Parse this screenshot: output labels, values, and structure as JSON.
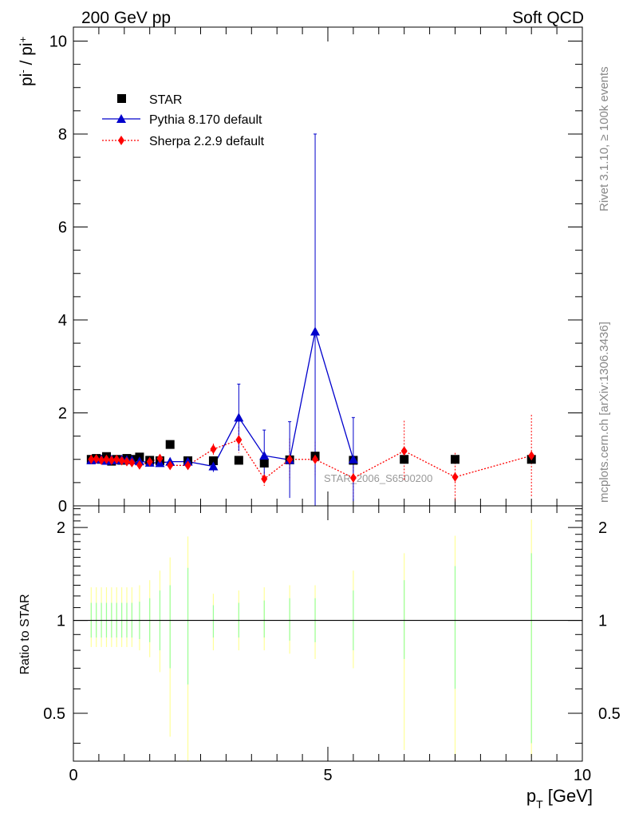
{
  "header": {
    "left": "200 GeV pp",
    "right": "Soft QCD"
  },
  "side_labels": {
    "rivet": "Rivet 3.1.10, ≥ 100k events",
    "mcplots": "mcplots.cern.ch [arXiv:1306.3436]"
  },
  "watermark": "STAR_2006_S6500200",
  "colors": {
    "star": "#000000",
    "pythia": "#0000cc",
    "sherpa": "#ff0000",
    "band_yellow": "#ffff99",
    "band_green": "#99ff99"
  },
  "chart_data": [
    {
      "type": "scatter",
      "panel": "main",
      "ylabel_base": "pi",
      "ylabel_num_sup": "-",
      "ylabel_den_sup": "+",
      "ylim": [
        0,
        10.3
      ],
      "xlim": [
        0,
        10
      ],
      "yticks": [
        "0",
        "2",
        "4",
        "6",
        "8",
        "10"
      ],
      "legend": [
        "STAR",
        "Pythia 8.170 default",
        "Sherpa 2.2.9 default"
      ],
      "legend_position": "top-left",
      "series": [
        {
          "name": "STAR",
          "marker": "square",
          "x": [
            0.35,
            0.45,
            0.55,
            0.65,
            0.75,
            0.85,
            0.95,
            1.05,
            1.15,
            1.3,
            1.5,
            1.7,
            1.9,
            2.25,
            2.75,
            3.25,
            3.75,
            4.25,
            4.75,
            5.5,
            6.5,
            7.5,
            9.0
          ],
          "y": [
            1.0,
            1.02,
            1.0,
            1.06,
            0.96,
            1.0,
            0.98,
            1.02,
            1.0,
            1.05,
            0.98,
            0.97,
            1.32,
            0.97,
            0.97,
            0.98,
            0.92,
            0.99,
            1.07,
            0.98,
            1.0,
            1.0,
            1.0
          ]
        },
        {
          "name": "Pythia 8.170 default",
          "marker": "triangle",
          "x": [
            0.35,
            0.45,
            0.55,
            0.65,
            0.75,
            0.85,
            0.95,
            1.05,
            1.15,
            1.3,
            1.5,
            1.7,
            1.9,
            2.25,
            2.75,
            3.25,
            3.75,
            4.25,
            4.75,
            5.5
          ],
          "y": [
            0.98,
            1.0,
            1.0,
            0.97,
            1.0,
            0.98,
            1.0,
            0.99,
            0.98,
            0.96,
            0.93,
            0.92,
            0.95,
            0.95,
            0.85,
            1.9,
            1.08,
            0.99,
            3.75,
            1.0
          ],
          "err": [
            0.03,
            0.03,
            0.03,
            0.03,
            0.03,
            0.03,
            0.04,
            0.04,
            0.04,
            0.04,
            0.05,
            0.06,
            0.07,
            0.07,
            0.12,
            0.72,
            0.55,
            0.82,
            4.25,
            0.9
          ]
        },
        {
          "name": "Sherpa 2.2.9 default",
          "marker": "diamond",
          "x": [
            0.35,
            0.45,
            0.55,
            0.65,
            0.75,
            0.85,
            0.95,
            1.05,
            1.15,
            1.3,
            1.5,
            1.7,
            1.9,
            2.25,
            2.75,
            3.25,
            3.75,
            4.25,
            4.75,
            5.5,
            6.5,
            7.5,
            9.0
          ],
          "y": [
            1.0,
            1.01,
            0.98,
            1.0,
            0.98,
            1.0,
            0.97,
            0.95,
            0.93,
            0.88,
            0.95,
            1.02,
            0.87,
            0.87,
            1.22,
            1.42,
            0.58,
            1.0,
            1.0,
            0.6,
            1.18,
            0.62,
            1.08
          ],
          "err": [
            0.03,
            0.03,
            0.03,
            0.03,
            0.03,
            0.04,
            0.04,
            0.04,
            0.04,
            0.05,
            0.05,
            0.06,
            0.07,
            0.08,
            0.12,
            0.28,
            0.15,
            0.45,
            0.38,
            0.45,
            0.65,
            0.52,
            0.88
          ]
        }
      ]
    },
    {
      "type": "scatter",
      "panel": "ratio",
      "ylabel": "Ratio to STAR",
      "xlabel_base": "p",
      "xlabel_sub": "T",
      "xlabel_unit": "[GeV]",
      "xlim": [
        0,
        10
      ],
      "ylim": [
        0.35,
        2.35
      ],
      "yscale": "log",
      "xticks": [
        "0",
        "5",
        "10"
      ],
      "yticks": [
        "0.5",
        "1",
        "2"
      ],
      "reference_line": 1.0,
      "uncertainty_bands": {
        "x": [
          0.35,
          0.45,
          0.55,
          0.65,
          0.75,
          0.85,
          0.95,
          1.05,
          1.15,
          1.3,
          1.5,
          1.7,
          1.9,
          2.25,
          2.75,
          3.25,
          3.75,
          4.25,
          4.75,
          5.5,
          6.5,
          7.5,
          9.0
        ],
        "yellow_lo": [
          0.82,
          0.82,
          0.82,
          0.82,
          0.82,
          0.82,
          0.82,
          0.82,
          0.82,
          0.8,
          0.76,
          0.68,
          0.42,
          0.35,
          0.8,
          0.8,
          0.8,
          0.78,
          0.75,
          0.7,
          0.38,
          0.36,
          0.36
        ],
        "yellow_hi": [
          1.28,
          1.28,
          1.28,
          1.28,
          1.28,
          1.28,
          1.28,
          1.28,
          1.28,
          1.3,
          1.35,
          1.45,
          1.6,
          1.87,
          1.22,
          1.25,
          1.28,
          1.3,
          1.3,
          1.45,
          1.65,
          1.88,
          2.12
        ],
        "green_lo": [
          0.88,
          0.88,
          0.88,
          0.88,
          0.88,
          0.88,
          0.88,
          0.88,
          0.88,
          0.87,
          0.85,
          0.8,
          0.7,
          0.62,
          0.88,
          0.88,
          0.88,
          0.86,
          0.85,
          0.8,
          0.75,
          0.6,
          0.4
        ],
        "green_hi": [
          1.14,
          1.14,
          1.14,
          1.14,
          1.14,
          1.14,
          1.14,
          1.14,
          1.14,
          1.15,
          1.18,
          1.25,
          1.3,
          1.48,
          1.12,
          1.14,
          1.16,
          1.18,
          1.18,
          1.25,
          1.35,
          1.5,
          1.65
        ]
      }
    }
  ]
}
